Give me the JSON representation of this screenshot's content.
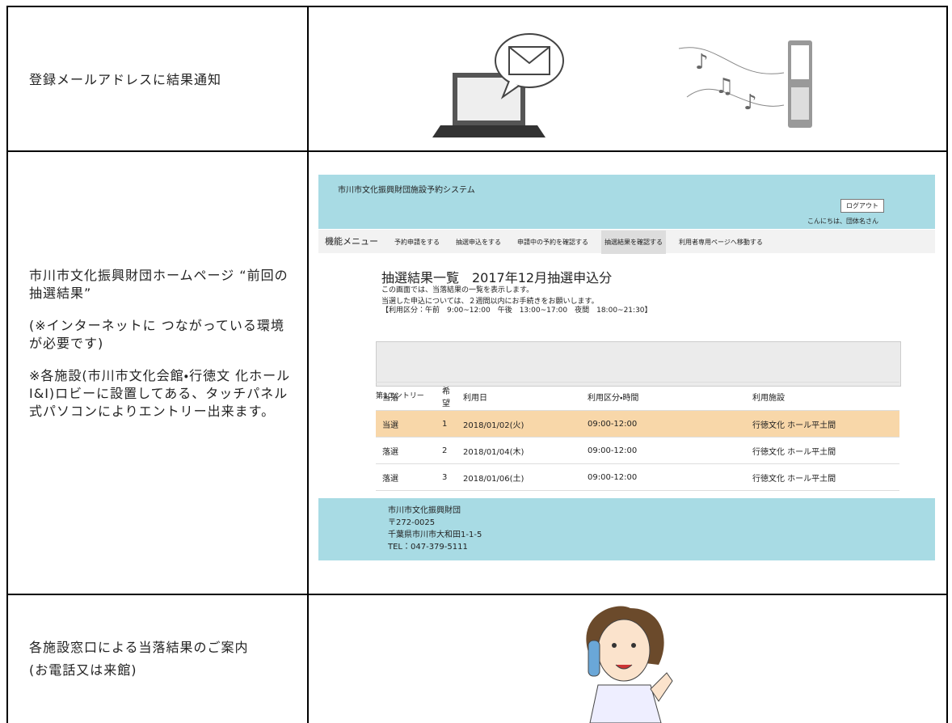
{
  "rows": [
    {
      "label": [
        "登録メールアドレスに結果通知"
      ]
    },
    {
      "label": [
        "市川市文化振興財団ホームページ “前回の抽選結果”",
        "(※インターネットに つながっている環境が必要です)",
        "※各施設(市川市文化会館・行徳文 化ホールI&I)ロビーに設置してある、タッチパネル式パソコンによりエントリー出来ます。"
      ]
    },
    {
      "label": [
        "各施設窓口による当落結果のご案内",
        "(お電話又は来館)"
      ]
    }
  ],
  "screenshot": {
    "system_title": "市川市文化振興財団施設予約システム",
    "logout": "ログアウト",
    "greeting": "こんにちは、団体名さん",
    "menu_label": "機能メニュー",
    "menu_items": [
      "予約申請をする",
      "抽選申込をする",
      "申請中の予約を確認する",
      "抽選結果を確認する",
      "利用者専用ページへ移動する"
    ],
    "heading": "抽選結果一覧　2017年12月抽選申込分",
    "description": [
      "この画面では、当落結果の一覧を表示します。",
      "当選した申込については、２週間以内にお手続きをお願いします。",
      "【利用区分：午前　9:00~12:00　午後　13:00~17:00　夜間　18:00~21:30】"
    ],
    "entry_label": "第1エントリー",
    "table": {
      "header": [
        "当落",
        "希望",
        "利用日",
        "利用区分・時間",
        "利用施設"
      ],
      "rows": [
        [
          "当選",
          "1",
          "2018/01/02(火)",
          "09:00-12:00",
          "行徳文化 ホール平土間"
        ],
        [
          "落選",
          "2",
          "2018/01/04(木)",
          "09:00-12:00",
          "行徳文化 ホール平土間"
        ],
        [
          "落選",
          "3",
          "2018/01/06(土)",
          "09:00-12:00",
          "行徳文化 ホール平土間"
        ]
      ]
    },
    "footer": [
      "市川市文化振興財団",
      "〒272-0025",
      "千葉県市川市大和田1-1-5",
      "TEL：047-379-5111"
    ]
  }
}
